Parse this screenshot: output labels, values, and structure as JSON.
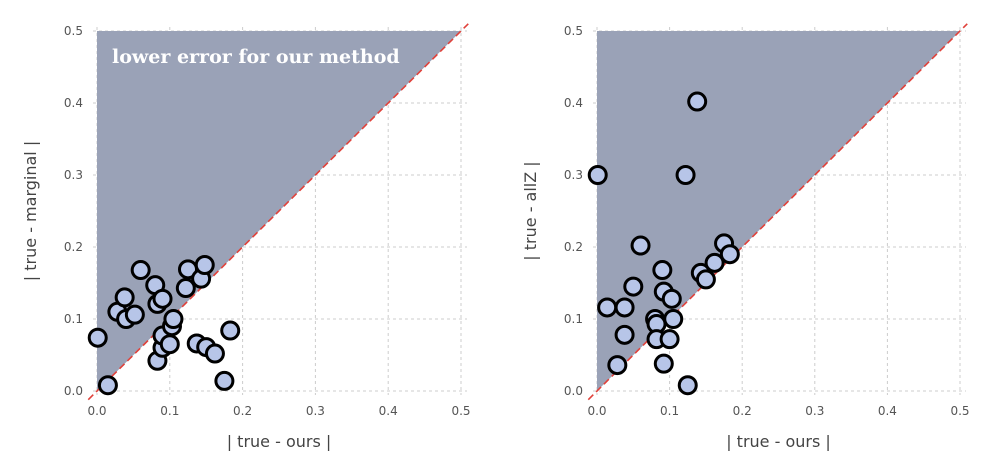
{
  "chart_data": [
    {
      "type": "scatter",
      "xlabel": "| true - ours |",
      "ylabel": "| true - marginal |",
      "xlim": [
        0,
        0.5
      ],
      "ylim": [
        0,
        0.5
      ],
      "xticks": [
        "0.0",
        "0.1",
        "0.2",
        "0.3",
        "0.4",
        "0.5"
      ],
      "yticks": [
        "0.0",
        "0.1",
        "0.2",
        "0.3",
        "0.4",
        "0.5"
      ],
      "grid": true,
      "annotation": "lower error for our method",
      "diagonal": "y = x",
      "shaded_region": "above diagonal",
      "colors": {
        "shade": "#9aa2b7",
        "point_fill": "#b7c5e8",
        "point_edge": "#000000",
        "diagonal": "#e0413a"
      },
      "points": [
        {
          "x": 0.001,
          "y": 0.074
        },
        {
          "x": 0.015,
          "y": 0.008
        },
        {
          "x": 0.028,
          "y": 0.11
        },
        {
          "x": 0.038,
          "y": 0.13
        },
        {
          "x": 0.04,
          "y": 0.1
        },
        {
          "x": 0.052,
          "y": 0.106
        },
        {
          "x": 0.06,
          "y": 0.168
        },
        {
          "x": 0.08,
          "y": 0.147
        },
        {
          "x": 0.083,
          "y": 0.042
        },
        {
          "x": 0.083,
          "y": 0.121
        },
        {
          "x": 0.09,
          "y": 0.06
        },
        {
          "x": 0.09,
          "y": 0.077
        },
        {
          "x": 0.09,
          "y": 0.128
        },
        {
          "x": 0.1,
          "y": 0.065
        },
        {
          "x": 0.103,
          "y": 0.09
        },
        {
          "x": 0.105,
          "y": 0.1
        },
        {
          "x": 0.122,
          "y": 0.143
        },
        {
          "x": 0.125,
          "y": 0.169
        },
        {
          "x": 0.137,
          "y": 0.066
        },
        {
          "x": 0.143,
          "y": 0.156
        },
        {
          "x": 0.148,
          "y": 0.175
        },
        {
          "x": 0.15,
          "y": 0.061
        },
        {
          "x": 0.162,
          "y": 0.052
        },
        {
          "x": 0.175,
          "y": 0.014
        },
        {
          "x": 0.183,
          "y": 0.084
        }
      ]
    },
    {
      "type": "scatter",
      "xlabel": "| true - ours |",
      "ylabel": "| true - allZ |",
      "xlim": [
        0,
        0.5
      ],
      "ylim": [
        0,
        0.5
      ],
      "xticks": [
        "0.0",
        "0.1",
        "0.2",
        "0.3",
        "0.4",
        "0.5"
      ],
      "yticks": [
        "0.0",
        "0.1",
        "0.2",
        "0.3",
        "0.4",
        "0.5"
      ],
      "grid": true,
      "diagonal": "y = x",
      "shaded_region": "above diagonal",
      "colors": {
        "shade": "#9aa2b7",
        "point_fill": "#b7c5e8",
        "point_edge": "#000000",
        "diagonal": "#e0413a"
      },
      "points": [
        {
          "x": 0.001,
          "y": 0.3
        },
        {
          "x": 0.014,
          "y": 0.116
        },
        {
          "x": 0.028,
          "y": 0.036
        },
        {
          "x": 0.038,
          "y": 0.116
        },
        {
          "x": 0.038,
          "y": 0.078
        },
        {
          "x": 0.05,
          "y": 0.145
        },
        {
          "x": 0.06,
          "y": 0.202
        },
        {
          "x": 0.08,
          "y": 0.1
        },
        {
          "x": 0.082,
          "y": 0.093
        },
        {
          "x": 0.082,
          "y": 0.072
        },
        {
          "x": 0.09,
          "y": 0.168
        },
        {
          "x": 0.092,
          "y": 0.138
        },
        {
          "x": 0.092,
          "y": 0.038
        },
        {
          "x": 0.1,
          "y": 0.072
        },
        {
          "x": 0.103,
          "y": 0.128
        },
        {
          "x": 0.105,
          "y": 0.1
        },
        {
          "x": 0.122,
          "y": 0.3
        },
        {
          "x": 0.125,
          "y": 0.008
        },
        {
          "x": 0.138,
          "y": 0.402
        },
        {
          "x": 0.143,
          "y": 0.164
        },
        {
          "x": 0.15,
          "y": 0.155
        },
        {
          "x": 0.162,
          "y": 0.178
        },
        {
          "x": 0.175,
          "y": 0.205
        },
        {
          "x": 0.183,
          "y": 0.19
        }
      ]
    }
  ]
}
